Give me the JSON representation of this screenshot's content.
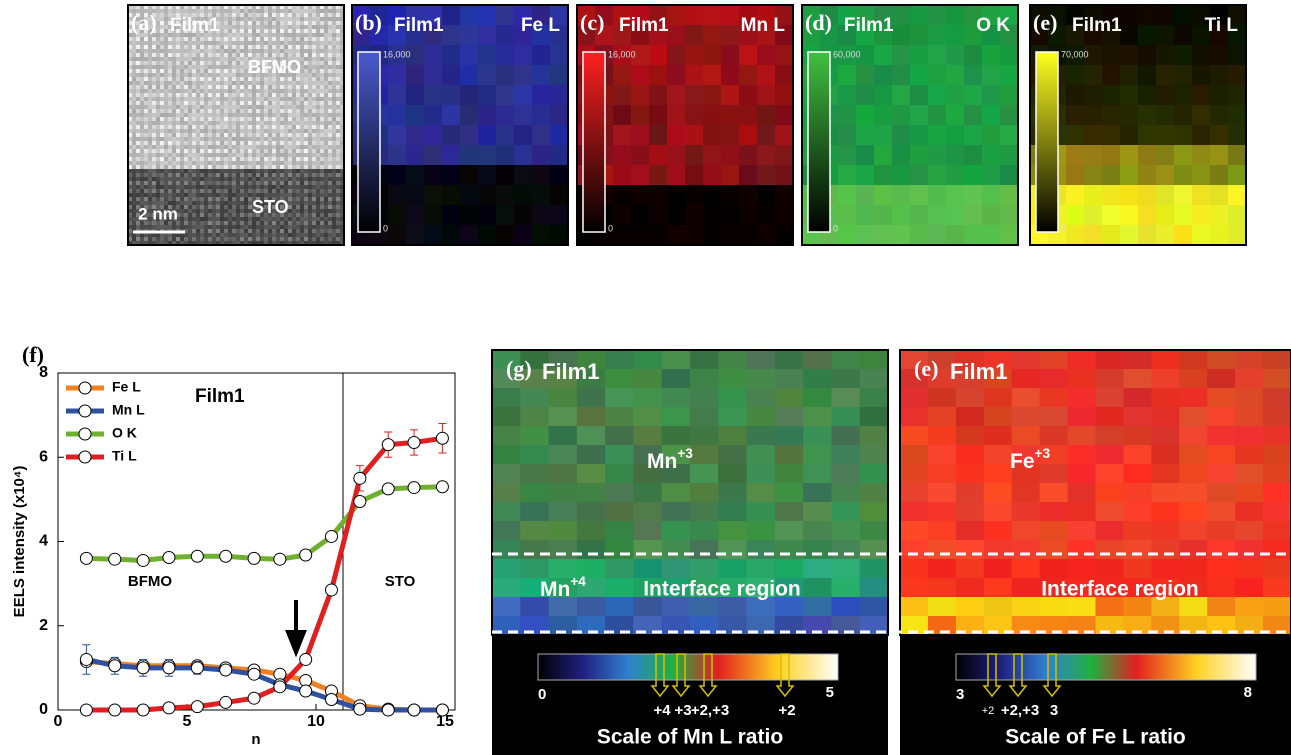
{
  "panels": [
    {
      "label": "(a)",
      "title": "Film1",
      "notes": [
        "BFMO",
        "STO"
      ],
      "scale": "2 nm"
    },
    {
      "label": "(b)",
      "title": "Film1",
      "element": "Fe L",
      "cbar_max": "16,000",
      "cbar_min": "0"
    },
    {
      "label": "(c)",
      "title": "Film1",
      "element": "Mn L",
      "cbar_max": "16,000",
      "cbar_min": "0"
    },
    {
      "label": "(d)",
      "title": "Film1",
      "element": "O K",
      "cbar_max": "60,000",
      "cbar_min": "0"
    },
    {
      "label": "(e)",
      "title": "Film1",
      "element": "Ti L",
      "cbar_max": "70,000",
      "cbar_min": "0"
    }
  ],
  "chart_data": {
    "type": "line",
    "label": "(f)",
    "title": "Film1",
    "xlabel": "n",
    "ylabel": "EELS intensity (x10⁴)",
    "annotations": [
      "BFMO",
      "STO"
    ],
    "x": [
      1.1,
      2.2,
      3.3,
      4.3,
      5.4,
      6.5,
      7.6,
      8.6,
      9.6,
      10.6,
      11.7,
      12.8,
      13.8,
      14.9
    ],
    "series": [
      {
        "name": "Fe L",
        "color": "#f08020",
        "values": [
          1.15,
          1.1,
          1.05,
          1.05,
          1.05,
          1.0,
          0.95,
          0.85,
          0.7,
          0.45,
          0.1,
          0.02,
          0,
          0
        ]
      },
      {
        "name": "Mn L",
        "color": "#3050a0",
        "values": [
          1.2,
          1.05,
          1.0,
          1.0,
          1.0,
          0.95,
          0.85,
          0.6,
          0.45,
          0.25,
          0.02,
          0,
          0,
          0
        ],
        "errors": [
          0.35,
          0.2,
          0.2,
          0.2,
          0.15,
          0.1,
          0.05,
          0.05,
          0.05,
          0.05,
          0.05,
          0,
          0,
          0
        ]
      },
      {
        "name": "O K",
        "color": "#70b030",
        "values": [
          3.6,
          3.58,
          3.55,
          3.62,
          3.65,
          3.65,
          3.6,
          3.58,
          3.68,
          4.12,
          4.95,
          5.25,
          5.28,
          5.3
        ]
      },
      {
        "name": "Ti L",
        "color": "#e02020",
        "values": [
          0,
          0,
          0,
          0.05,
          0.08,
          0.18,
          0.28,
          0.55,
          1.2,
          2.85,
          5.5,
          6.3,
          6.35,
          6.45
        ],
        "errors": [
          0,
          0,
          0,
          0,
          0,
          0,
          0,
          0,
          0,
          0,
          0.3,
          0.3,
          0.3,
          0.35
        ]
      }
    ],
    "xlim": [
      0,
      15
    ],
    "xticks": [
      0,
      5,
      10,
      15
    ],
    "ylim": [
      0,
      8
    ],
    "yticks": [
      0,
      2,
      4,
      6,
      8
    ]
  },
  "maps": [
    {
      "label": "(g)",
      "title": "Film1",
      "ion": {
        "base": "Mn",
        "sup": "+3"
      },
      "ion2": {
        "base": "Mn",
        "sup": "+4"
      },
      "region": "Interface region",
      "scale_min": "0",
      "scale_max": "5",
      "markers": [
        "+4",
        "+3",
        "+2,+3",
        "+2"
      ],
      "caption": "Scale of Mn L ratio"
    },
    {
      "label": "(e)",
      "title": "Film1",
      "ion": {
        "base": "Fe",
        "sup": "+3"
      },
      "region": "Interface region",
      "scale_min": "3",
      "scale_max": "8",
      "markers": [
        "+2",
        "+2,+3",
        "3"
      ],
      "caption": "Scale of Fe L ratio"
    }
  ]
}
